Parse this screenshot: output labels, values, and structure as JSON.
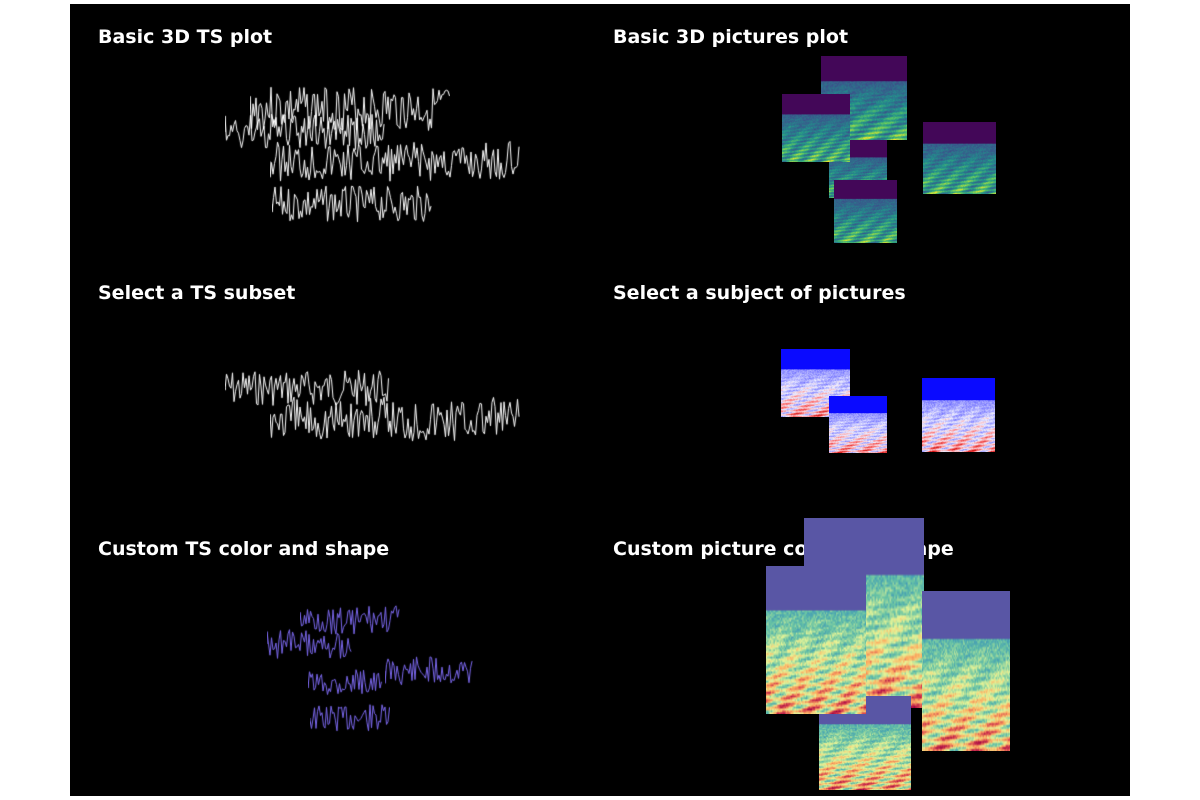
{
  "panels": [
    {
      "id": "basic-ts",
      "title": "Basic 3D TS plot",
      "kind": "ts",
      "color": "#ffffff"
    },
    {
      "id": "basic-pictures",
      "title": "Basic 3D pictures plot",
      "kind": "pictures",
      "colormap": "viridis"
    },
    {
      "id": "select-ts",
      "title": "Select a TS subset",
      "kind": "ts",
      "color": "#ffffff"
    },
    {
      "id": "select-pictures",
      "title": "Select a subject of pictures",
      "kind": "pictures",
      "colormap": "bwr"
    },
    {
      "id": "custom-ts",
      "title": "Custom TS color and shape",
      "kind": "ts",
      "color": "#7b68ee"
    },
    {
      "id": "custom-pictures",
      "title": "Custom picture color and shape",
      "kind": "pictures",
      "colormap": "spectral"
    }
  ],
  "colors": {
    "background": "#000000",
    "title_text": "#ffffff"
  }
}
